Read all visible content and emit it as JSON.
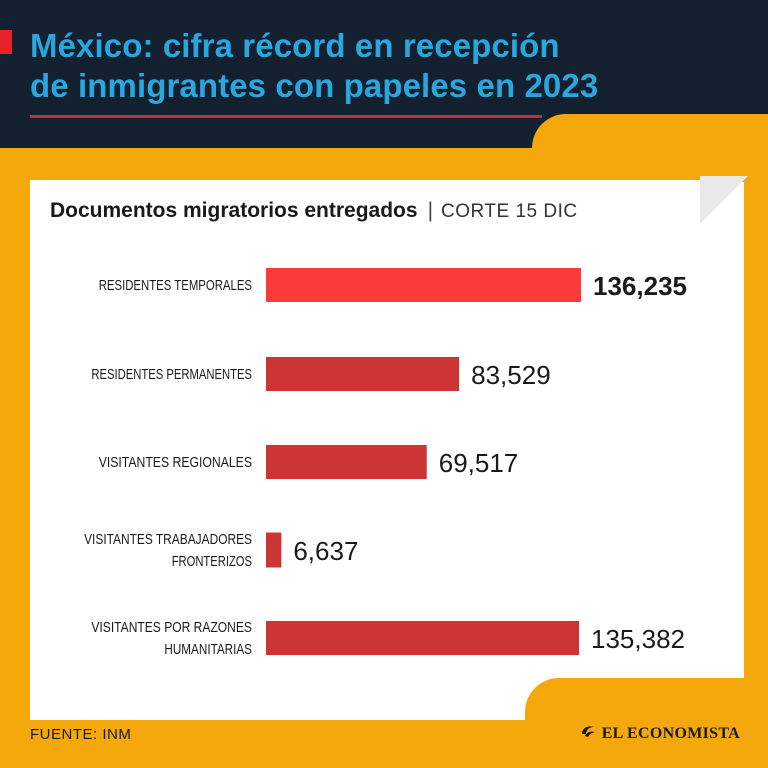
{
  "title_lines": [
    "México: cifra récord en recepción",
    "de inmigrantes con papeles en 2023"
  ],
  "subtitle": {
    "main": "Documentos migratorios entregados",
    "separator": "|",
    "date": "CORTE 15 DIC"
  },
  "colors": {
    "title": "#2aa6df",
    "accent_red": "#e8222b",
    "bar_highlight": "#fb3a3b",
    "bar": "#cd3434",
    "frame_yellow": "#f5a80c",
    "background": "#132030"
  },
  "chart_data": {
    "type": "bar",
    "orientation": "horizontal",
    "categories": [
      "RESIDENTES TEMPORALES",
      "RESIDENTES PERMANENTES",
      "VISITANTES REGIONALES",
      "VISITANTES TRABAJADORES FRONTERIZOS",
      "VISITANTES POR RAZONES HUMANITARIAS"
    ],
    "category_lines": [
      [
        "RESIDENTES TEMPORALES"
      ],
      [
        "RESIDENTES PERMANENTES"
      ],
      [
        "VISITANTES REGIONALES"
      ],
      [
        "VISITANTES TRABAJADORES",
        "FRONTERIZOS"
      ],
      [
        "VISITANTES POR RAZONES",
        "HUMANITARIAS"
      ]
    ],
    "values": [
      136235,
      83529,
      69517,
      6637,
      135382
    ],
    "value_labels": [
      "136,235",
      "83,529",
      "69,517",
      "6,637",
      "135,382"
    ],
    "highlight_index": 0,
    "xlim": [
      0,
      136235
    ],
    "grid": false,
    "legend": "none"
  },
  "footer": {
    "source": "FUENTE: INM",
    "brand": "EL ECONOMISTA",
    "brand_icon": "newspaper-swirl-icon"
  }
}
